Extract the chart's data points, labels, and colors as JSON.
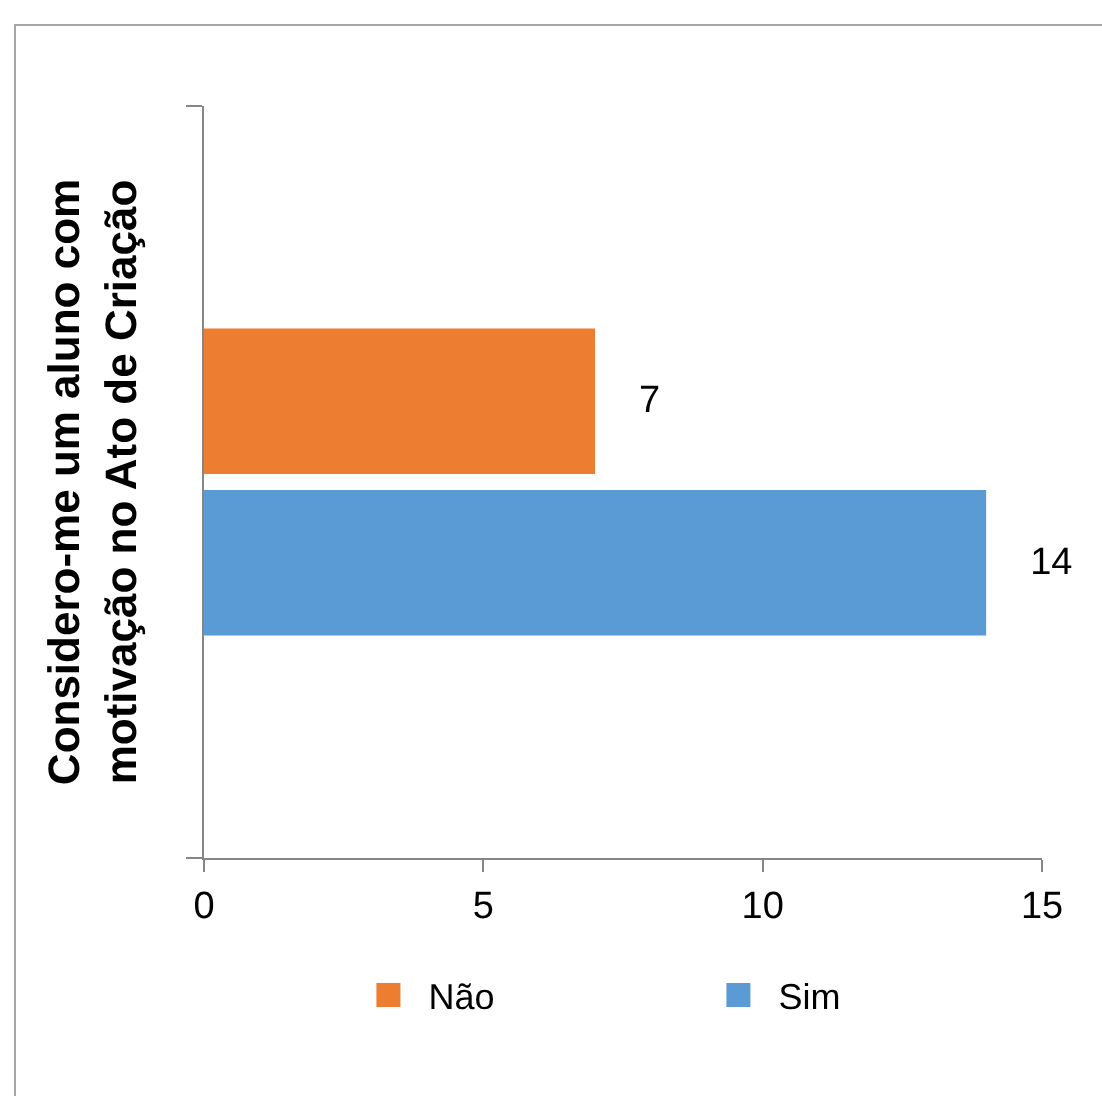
{
  "chart_data": {
    "type": "bar",
    "orientation": "horizontal",
    "ylabel": "Considero-me um aluno com motivação no Ato de Criação",
    "categories": [
      null
    ],
    "series": [
      {
        "name": "Não",
        "color": "#ed7d31",
        "values": [
          7
        ]
      },
      {
        "name": "Sim",
        "color": "#5b9bd5",
        "values": [
          14
        ]
      }
    ],
    "xlim": [
      0,
      15
    ],
    "xticks": [
      0,
      5,
      10,
      15
    ],
    "data_labels": true,
    "grid": false,
    "legend": "bottom"
  }
}
